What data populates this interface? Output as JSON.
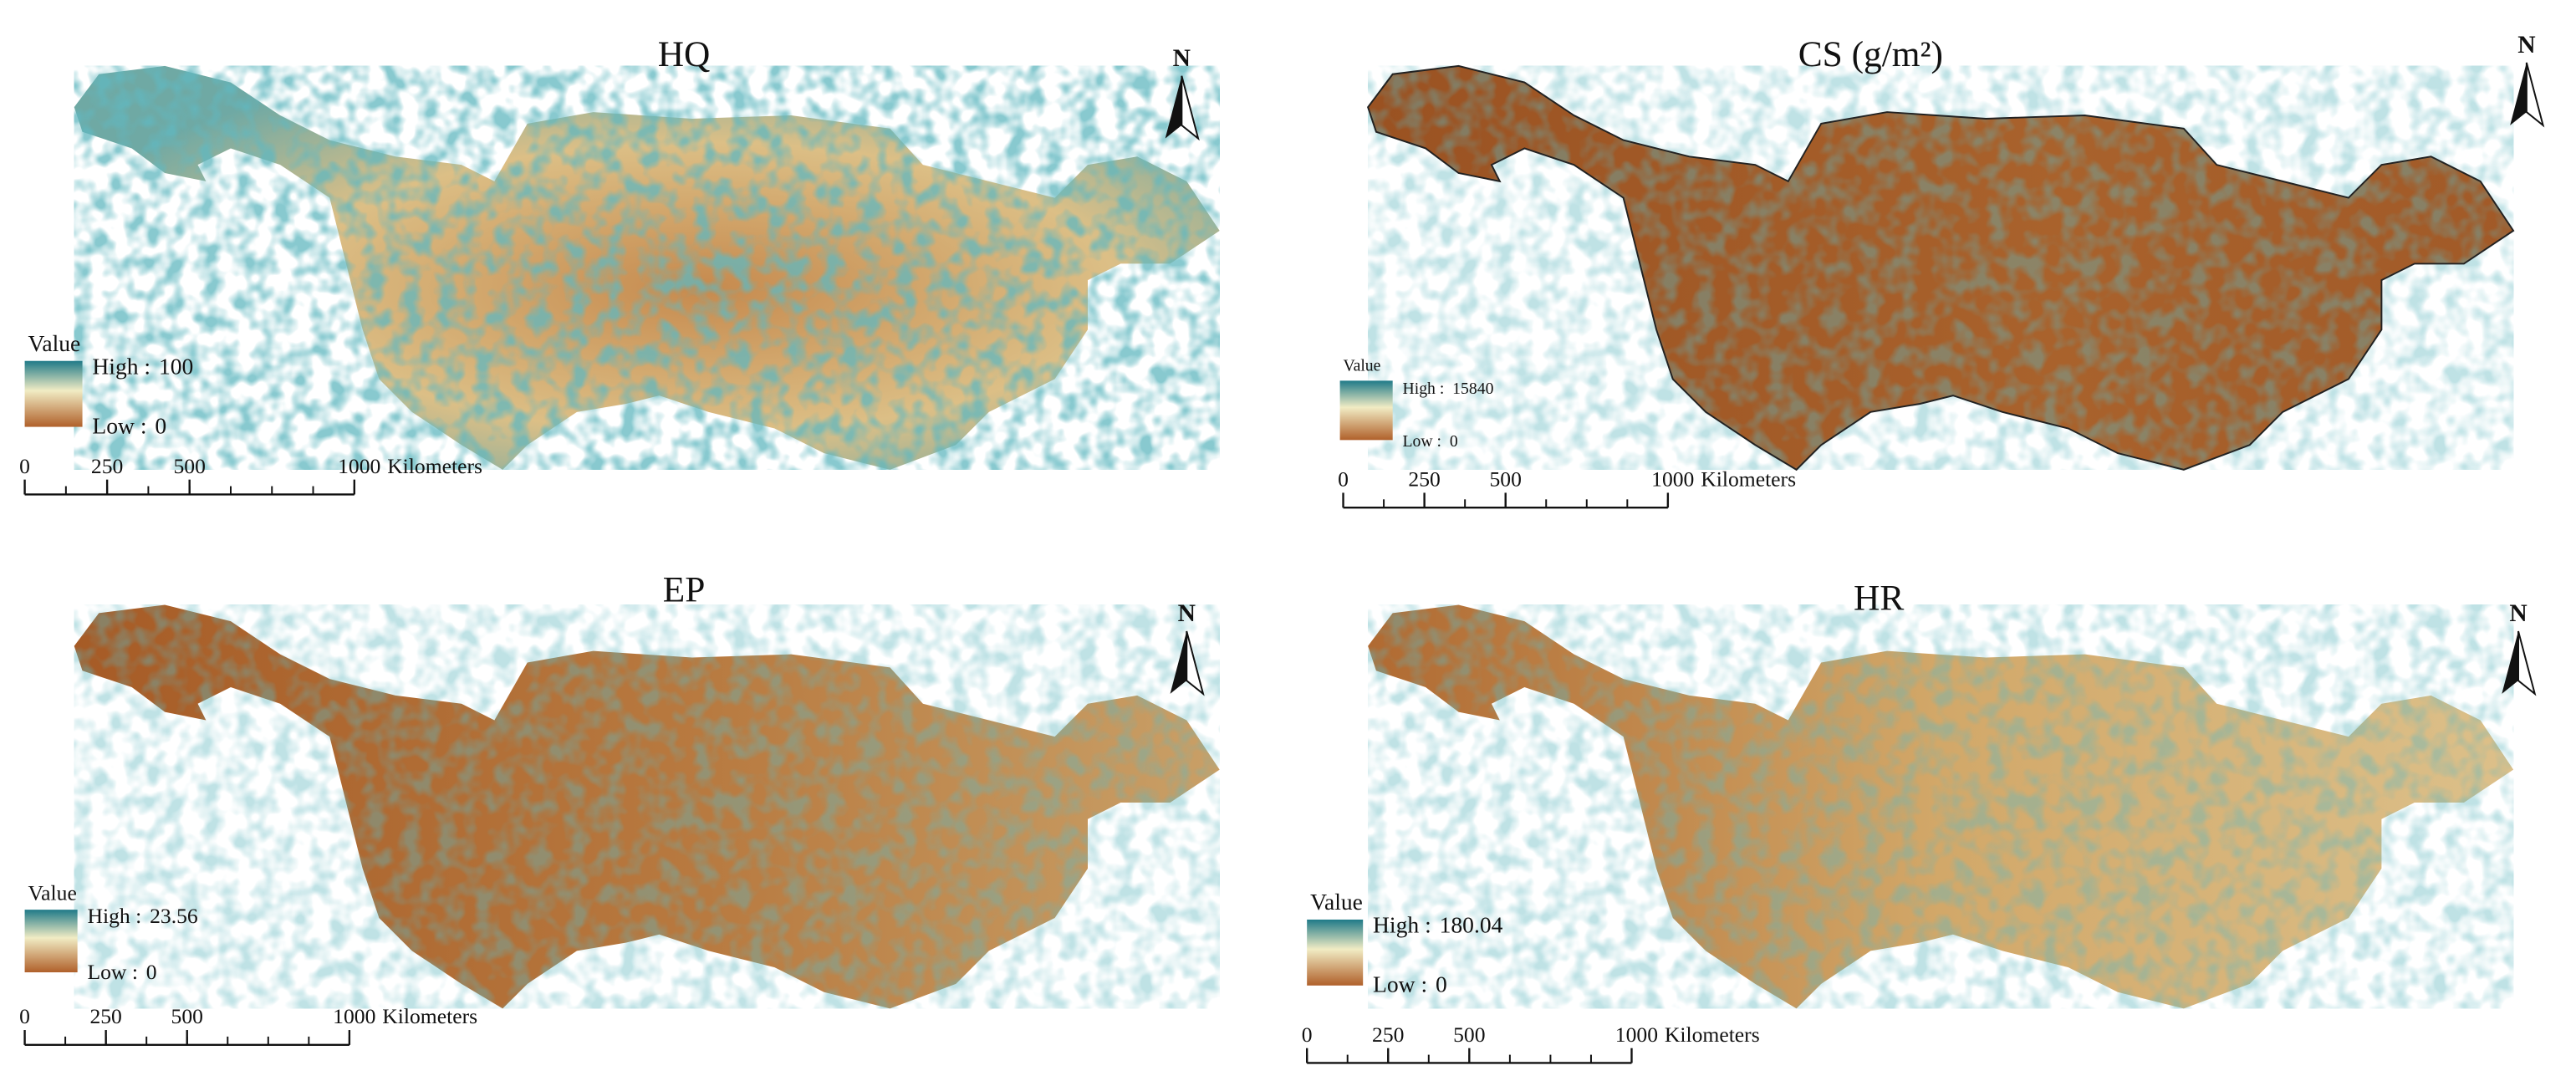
{
  "panels": [
    {
      "title": "HQ",
      "legend": {
        "title": "Value",
        "high_label": "High :",
        "high_value": 100,
        "low_label": "Low :",
        "low_value": 0
      },
      "scale_bar": {
        "ticks": [
          0,
          250,
          500,
          1000
        ],
        "unit": "Kilometers"
      },
      "north": "N"
    },
    {
      "title": "CS (g/m²)",
      "legend": {
        "title": "Value",
        "high_label": "High :",
        "high_value": 15840,
        "low_label": "Low :",
        "low_value": 0
      },
      "scale_bar": {
        "ticks": [
          0,
          250,
          500,
          1000
        ],
        "unit": "Kilometers"
      },
      "north": "N"
    },
    {
      "title": "EP",
      "legend": {
        "title": "Value",
        "high_label": "High :",
        "high_value": 23.56,
        "low_label": "Low :",
        "low_value": 0
      },
      "scale_bar": {
        "ticks": [
          0,
          250,
          500,
          1000
        ],
        "unit": "Kilometers"
      },
      "north": "N"
    },
    {
      "title": "HR",
      "legend": {
        "title": "Value",
        "high_label": "High :",
        "high_value": 180.04,
        "low_label": "Low :",
        "low_value": 0
      },
      "scale_bar": {
        "ticks": [
          0,
          250,
          500,
          1000
        ],
        "unit": "Kilometers"
      },
      "north": "N"
    }
  ]
}
